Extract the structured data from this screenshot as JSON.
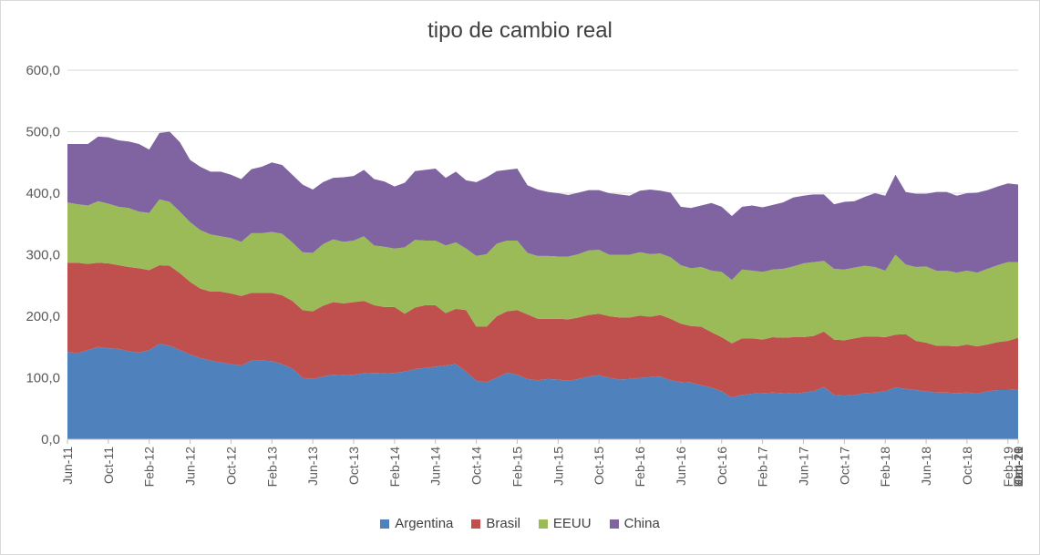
{
  "chart_data": {
    "type": "area",
    "stacked": true,
    "title": "tipo de cambio real",
    "xlabel": "",
    "ylabel": "",
    "ylim": [
      0,
      600
    ],
    "yticks": [
      "0,0",
      "100,0",
      "200,0",
      "300,0",
      "400,0",
      "500,0",
      "600,0"
    ],
    "xtick_labels": [
      "Jun-11",
      "Oct-11",
      "Feb-12",
      "Jun-12",
      "Oct-12",
      "Feb-13",
      "Jun-13",
      "Oct-13",
      "Feb-14",
      "Jun-14",
      "Oct-14",
      "Feb-15",
      "Jun-15",
      "Oct-15",
      "Feb-16",
      "Jun-16",
      "Oct-16",
      "Feb-17",
      "Jun-17",
      "Oct-17",
      "Feb-18",
      "Jun-18",
      "Oct-18",
      "Feb-19",
      "Jun-19",
      "Oct-19",
      "Feb-20",
      "Jun-20",
      "Oct-20",
      "Feb-21",
      "Jun-21"
    ],
    "legend_position": "bottom",
    "grid": true,
    "series": [
      {
        "name": "Argentina",
        "color": "#4f81bd",
        "values": [
          142,
          140,
          145,
          150,
          148,
          147,
          143,
          141,
          145,
          155,
          152,
          145,
          138,
          132,
          128,
          125,
          122,
          120,
          128,
          128,
          127,
          122,
          115,
          100,
          98,
          102,
          105,
          104,
          105,
          107,
          108,
          107,
          108,
          110,
          114,
          116,
          118,
          120,
          122,
          110,
          95,
          93,
          100,
          108,
          105,
          98,
          96,
          98,
          97,
          95,
          98,
          102,
          104,
          100,
          97,
          98,
          100,
          101,
          102,
          96,
          93,
          92,
          88,
          84,
          78,
          68,
          72,
          74,
          75,
          76,
          75,
          74,
          76,
          78,
          85,
          72,
          71,
          72,
          75,
          76,
          78,
          84,
          82,
          80,
          78,
          76,
          76,
          75,
          76,
          74,
          78,
          80,
          80,
          81
        ]
      },
      {
        "name": "Brasil",
        "color": "#c0504d",
        "values": [
          145,
          147,
          140,
          137,
          138,
          136,
          137,
          137,
          130,
          128,
          130,
          125,
          118,
          113,
          112,
          115,
          115,
          113,
          110,
          110,
          111,
          112,
          110,
          110,
          110,
          115,
          118,
          117,
          118,
          118,
          110,
          108,
          107,
          94,
          100,
          102,
          100,
          85,
          90,
          100,
          88,
          90,
          100,
          100,
          105,
          105,
          100,
          98,
          99,
          100,
          100,
          100,
          100,
          100,
          101,
          100,
          101,
          98,
          100,
          100,
          95,
          92,
          95,
          90,
          88,
          88,
          92,
          90,
          87,
          90,
          90,
          92,
          90,
          90,
          90,
          90,
          90,
          92,
          92,
          91,
          88,
          86,
          89,
          80,
          79,
          76,
          76,
          76,
          78,
          77,
          76,
          78,
          80,
          84
        ]
      },
      {
        "name": "EEUU",
        "color": "#9bbb59",
        "values": [
          98,
          95,
          95,
          100,
          97,
          95,
          96,
          92,
          93,
          107,
          104,
          100,
          97,
          95,
          93,
          90,
          90,
          88,
          97,
          97,
          99,
          100,
          95,
          94,
          95,
          100,
          102,
          100,
          100,
          105,
          97,
          98,
          95,
          108,
          110,
          105,
          105,
          110,
          108,
          100,
          115,
          118,
          118,
          115,
          113,
          100,
          102,
          102,
          101,
          102,
          103,
          105,
          104,
          100,
          102,
          102,
          103,
          102,
          100,
          100,
          95,
          94,
          97,
          100,
          106,
          103,
          112,
          110,
          110,
          110,
          112,
          115,
          120,
          120,
          115,
          115,
          115,
          115,
          115,
          113,
          108,
          130,
          113,
          120,
          124,
          122,
          122,
          120,
          120,
          120,
          123,
          125,
          128,
          123
        ]
      },
      {
        "name": "China",
        "color": "#8064a2",
        "values": [
          95,
          98,
          100,
          105,
          108,
          108,
          108,
          110,
          103,
          108,
          114,
          113,
          101,
          103,
          102,
          105,
          103,
          102,
          104,
          108,
          113,
          112,
          110,
          110,
          103,
          101,
          100,
          105,
          105,
          108,
          108,
          106,
          101,
          105,
          112,
          115,
          117,
          110,
          115,
          111,
          120,
          125,
          118,
          115,
          117,
          110,
          108,
          104,
          103,
          100,
          100,
          98,
          97,
          100,
          98,
          96,
          100,
          105,
          102,
          105,
          95,
          98,
          100,
          110,
          106,
          104,
          102,
          106,
          105,
          105,
          108,
          112,
          110,
          110,
          108,
          105,
          110,
          108,
          112,
          120,
          122,
          130,
          118,
          119,
          118,
          128,
          128,
          125,
          126,
          130,
          128,
          128,
          128,
          126
        ]
      }
    ]
  }
}
